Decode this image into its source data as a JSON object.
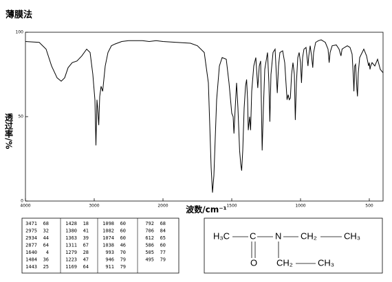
{
  "chart_data": {
    "type": "line",
    "title": "薄膜法",
    "x_label": "波数/cm⁻¹",
    "y_label": "透过率/%",
    "xlim": [
      4000,
      400
    ],
    "ylim": [
      0,
      100
    ],
    "x_scale_break": 2000,
    "xticks": [
      4000,
      3000,
      2000,
      1500,
      1000,
      500
    ],
    "yticks": [
      0,
      50,
      100
    ],
    "color": "#000000",
    "x": [
      4000,
      3800,
      3700,
      3620,
      3540,
      3480,
      3430,
      3380,
      3320,
      3250,
      3180,
      3110,
      3060,
      3020,
      2990,
      2975,
      2960,
      2950,
      2934,
      2920,
      2900,
      2877,
      2860,
      2840,
      2800,
      2750,
      2700,
      2600,
      2500,
      2400,
      2300,
      2200,
      2100,
      2000,
      1900,
      1800,
      1750,
      1700,
      1670,
      1650,
      1640,
      1630,
      1610,
      1590,
      1570,
      1540,
      1520,
      1500,
      1490,
      1484,
      1475,
      1465,
      1455,
      1443,
      1435,
      1428,
      1420,
      1410,
      1400,
      1392,
      1385,
      1380,
      1375,
      1370,
      1363,
      1355,
      1340,
      1325,
      1311,
      1300,
      1290,
      1279,
      1270,
      1260,
      1240,
      1230,
      1223,
      1215,
      1200,
      1185,
      1169,
      1160,
      1150,
      1130,
      1115,
      1098,
      1090,
      1082,
      1074,
      1065,
      1055,
      1045,
      1038,
      1030,
      1020,
      1010,
      1000,
      993,
      985,
      975,
      960,
      950,
      946,
      940,
      930,
      920,
      911,
      905,
      890,
      870,
      850,
      820,
      800,
      792,
      785,
      770,
      740,
      720,
      706,
      698,
      680,
      660,
      640,
      625,
      615,
      612,
      606,
      600,
      590,
      586,
      580,
      570,
      540,
      520,
      505,
      500,
      495,
      490,
      480,
      460,
      440,
      420,
      400
    ],
    "values": [
      94.5,
      94,
      90,
      80,
      73,
      71,
      73,
      79,
      82,
      83,
      86,
      90,
      88,
      75,
      60,
      33,
      60,
      55,
      45,
      62,
      68,
      65,
      72,
      80,
      88,
      92,
      93,
      94.5,
      95,
      95,
      95,
      94.5,
      95,
      94.5,
      94,
      93.5,
      92,
      88,
      70,
      20,
      5,
      15,
      60,
      80,
      85,
      84,
      70,
      52,
      50,
      40,
      55,
      70,
      55,
      30,
      22,
      18,
      30,
      55,
      68,
      72,
      60,
      42,
      46,
      50,
      42,
      65,
      80,
      85,
      67,
      80,
      83,
      30,
      55,
      78,
      88,
      70,
      47,
      75,
      88,
      90,
      64,
      80,
      88,
      89,
      82,
      60,
      63,
      60,
      61,
      75,
      82,
      75,
      48,
      70,
      85,
      88,
      82,
      70,
      85,
      90,
      91,
      83,
      80,
      86,
      92,
      86,
      79,
      88,
      94,
      95,
      95.5,
      94,
      90,
      82,
      88,
      92,
      92.5,
      90,
      86,
      90,
      91,
      92,
      91,
      87,
      72,
      65,
      80,
      81,
      66,
      62,
      76,
      85,
      90,
      86,
      80,
      82,
      78,
      80,
      82,
      80,
      84,
      78,
      76
    ]
  },
  "peak_table": {
    "columns": [
      [
        [
          3471,
          68
        ],
        [
          2975,
          32
        ],
        [
          2934,
          44
        ],
        [
          2877,
          64
        ],
        [
          1640,
          4
        ],
        [
          1484,
          36
        ],
        [
          1443,
          25
        ]
      ],
      [
        [
          1428,
          18
        ],
        [
          1380,
          41
        ],
        [
          1363,
          39
        ],
        [
          1311,
          67
        ],
        [
          1279,
          28
        ],
        [
          1223,
          47
        ],
        [
          1169,
          64
        ]
      ],
      [
        [
          1098,
          60
        ],
        [
          1082,
          60
        ],
        [
          1074,
          60
        ],
        [
          1038,
          46
        ],
        [
          993,
          70
        ],
        [
          946,
          79
        ],
        [
          911,
          79
        ]
      ],
      [
        [
          792,
          68
        ],
        [
          706,
          84
        ],
        [
          612,
          65
        ],
        [
          586,
          60
        ],
        [
          505,
          77
        ],
        [
          495,
          79
        ]
      ]
    ]
  },
  "structure": {
    "atoms": [
      "H₃C",
      "C",
      "N",
      "CH₂",
      "CH₃",
      "O",
      "CH₂",
      "CH₃"
    ]
  }
}
